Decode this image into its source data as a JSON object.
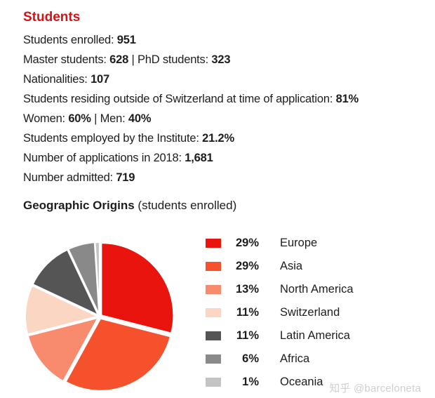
{
  "header": {
    "title": "Students",
    "title_color": "#d41317"
  },
  "stats_lines": [
    {
      "segments": [
        {
          "t": "Students enrolled: ",
          "b": false
        },
        {
          "t": "951",
          "b": true
        }
      ]
    },
    {
      "segments": [
        {
          "t": "Master students: ",
          "b": false
        },
        {
          "t": "628",
          "b": true
        },
        {
          "t": " | PhD students: ",
          "b": false
        },
        {
          "t": "323",
          "b": true
        }
      ]
    },
    {
      "segments": [
        {
          "t": "Nationalities: ",
          "b": false
        },
        {
          "t": "107",
          "b": true
        }
      ]
    },
    {
      "segments": [
        {
          "t": "Students residing outside of Switzerland at time of application: ",
          "b": false
        },
        {
          "t": "81%",
          "b": true
        }
      ]
    },
    {
      "segments": [
        {
          "t": "Women: ",
          "b": false
        },
        {
          "t": "60%",
          "b": true
        },
        {
          "t": " | Men: ",
          "b": false
        },
        {
          "t": "40%",
          "b": true
        }
      ]
    },
    {
      "segments": [
        {
          "t": "Students employed by the Institute: ",
          "b": false
        },
        {
          "t": "21.2%",
          "b": true
        }
      ]
    },
    {
      "segments": [
        {
          "t": "Number of applications in 2018: ",
          "b": false
        },
        {
          "t": "1,681",
          "b": true
        }
      ]
    },
    {
      "segments": [
        {
          "t": "Number admitted: ",
          "b": false
        },
        {
          "t": "719",
          "b": true
        }
      ]
    }
  ],
  "section": {
    "bold": "Geographic Origins",
    "normal": " (students enrolled)"
  },
  "chart_data": {
    "type": "pie",
    "title": "Geographic Origins (students enrolled)",
    "start_angle_deg": 0,
    "direction": "clockwise",
    "slices": [
      {
        "label": "Europe",
        "pct": 29,
        "color": "#e8140d"
      },
      {
        "label": "Asia",
        "pct": 29,
        "color": "#f4512c"
      },
      {
        "label": "North America",
        "pct": 13,
        "color": "#f88b6d"
      },
      {
        "label": "Switzerland",
        "pct": 11,
        "color": "#fbd6c3"
      },
      {
        "label": "Latin America",
        "pct": 11,
        "color": "#555555"
      },
      {
        "label": "Africa",
        "pct": 6,
        "color": "#898989"
      },
      {
        "label": "Oceania",
        "pct": 1,
        "color": "#c4c4c4"
      }
    ],
    "legend_position": "right"
  },
  "watermark": "知乎 @barceloneta"
}
